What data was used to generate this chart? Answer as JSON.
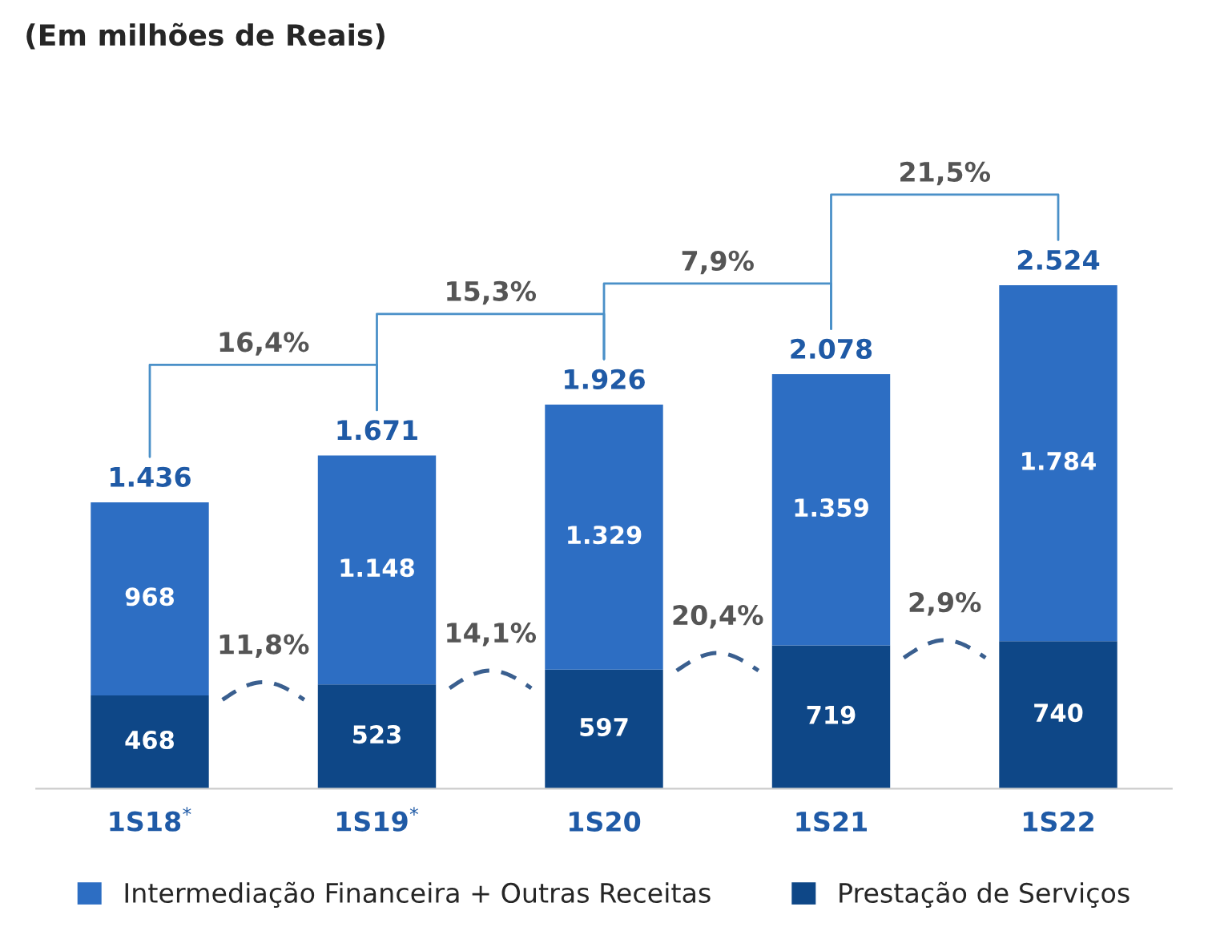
{
  "chart_data": {
    "type": "bar",
    "title": "(Em milhões de Reais)",
    "categories": [
      "1S18$^{*}$",
      "1S19$^{*}$",
      "1S20",
      "1S21",
      "1S22"
    ],
    "stacked": true,
    "series": [
      {
        "name": "Prestação de Serviços",
        "color": "#0e4787",
        "values": [
          468,
          523,
          597,
          719,
          740
        ],
        "value_labels": [
          "468",
          "523",
          "597",
          "719",
          "740"
        ]
      },
      {
        "name": "Intermediação Financeira + Outras Receitas",
        "color": "#2d6ec3",
        "values": [
          968,
          1148,
          1329,
          1359,
          1784
        ],
        "value_labels": [
          "968",
          "1.148",
          "1.329",
          "1.359",
          "1.784"
        ]
      }
    ],
    "totals": [
      "1.436",
      "1.671",
      "1.926",
      "2.078",
      "2.524"
    ],
    "annotations": [
      "16,4%",
      "15,3%",
      "7,9%",
      "21,5%",
      "11,8%",
      "14,1%",
      "20,4%",
      "2,9%"
    ],
    "legend": "bottom",
    "grid": false
  }
}
